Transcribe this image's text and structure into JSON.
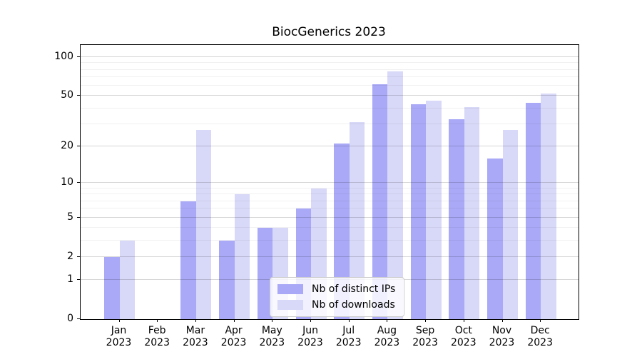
{
  "title": "BiocGenerics 2023",
  "legend": {
    "items": [
      {
        "label": "Nb of distinct IPs",
        "color": "#a9a9f7"
      },
      {
        "label": "Nb of downloads",
        "color": "#d8d8f8"
      }
    ]
  },
  "axes": {
    "y_tick_values": [
      100,
      50,
      20,
      10,
      5,
      2,
      1,
      0
    ],
    "x_year": "2023"
  },
  "colors": {
    "distinct_ips": "#a9a9f7",
    "downloads": "#d8d8f8",
    "grid_major": "#d9d9d9",
    "grid_minor": "#f0f0f0",
    "spine": "#000000",
    "background": "#ffffff"
  },
  "chart_data": {
    "type": "bar",
    "title": "BiocGenerics 2023",
    "y_scale": "log1p",
    "grid": true,
    "legend_position": "lower center",
    "ylim": [
      0,
      124
    ],
    "yticks": [
      0,
      1,
      2,
      5,
      10,
      20,
      50,
      100
    ],
    "categories": [
      "Jan",
      "Feb",
      "Mar",
      "Apr",
      "May",
      "Jun",
      "Jul",
      "Aug",
      "Sep",
      "Oct",
      "Nov",
      "Dec"
    ],
    "x_tick_year": "2023",
    "series": [
      {
        "name": "Nb of distinct IPs",
        "color": "#a9a9f7",
        "values": [
          2,
          0,
          7,
          3,
          4,
          6,
          21,
          62,
          43,
          33,
          16,
          44
        ]
      },
      {
        "name": "Nb of downloads",
        "color": "#d8d8f8",
        "values": [
          3,
          0,
          27,
          8,
          4,
          9,
          31,
          78,
          46,
          41,
          27,
          52
        ]
      }
    ]
  }
}
